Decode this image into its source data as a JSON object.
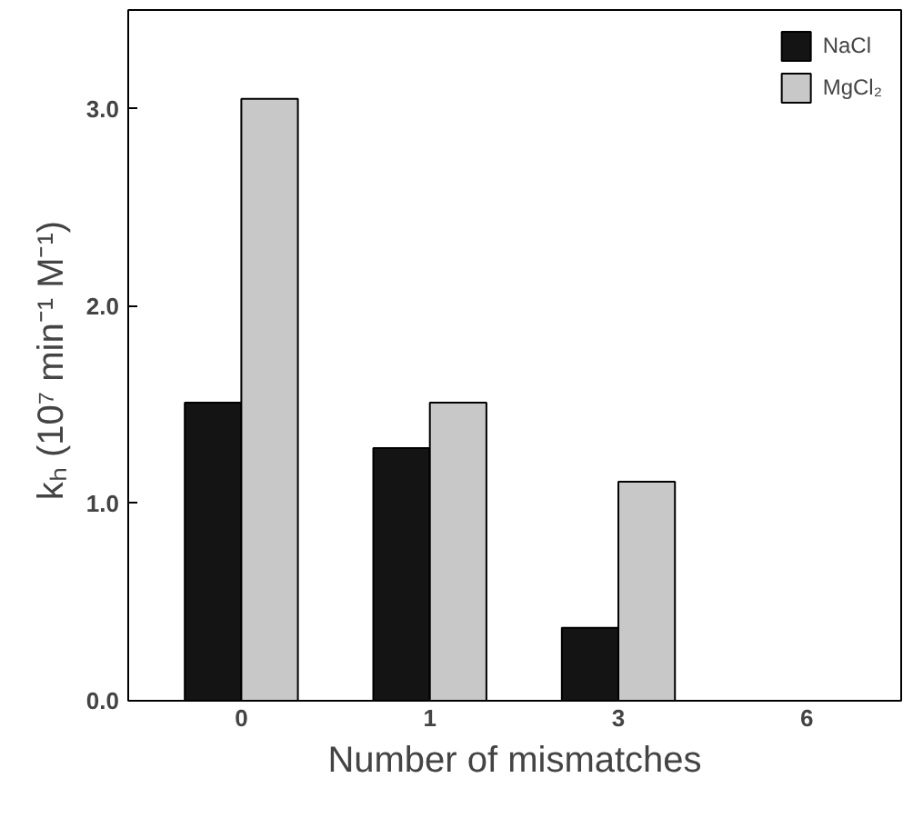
{
  "chart_data": {
    "type": "bar",
    "xlabel": "Number of mismatches",
    "ylabel": "kₕ  (10⁷ min⁻¹ M⁻¹)",
    "categories": [
      "0",
      "1",
      "3",
      "6"
    ],
    "series": [
      {
        "name": "NaCl",
        "color": "#141414",
        "values": [
          1.51,
          1.28,
          0.37,
          null
        ]
      },
      {
        "name": "MgCl₂",
        "color": "#c8c8c8",
        "values": [
          3.05,
          1.51,
          1.11,
          null
        ]
      }
    ],
    "ylim": [
      0,
      3.5
    ],
    "yticks": [
      {
        "value": 0,
        "label": "0.0"
      },
      {
        "value": 1,
        "label": "1.0"
      },
      {
        "value": 2,
        "label": "2.0"
      },
      {
        "value": 3,
        "label": "3.0"
      }
    ],
    "grid": false,
    "legend": "top right"
  }
}
